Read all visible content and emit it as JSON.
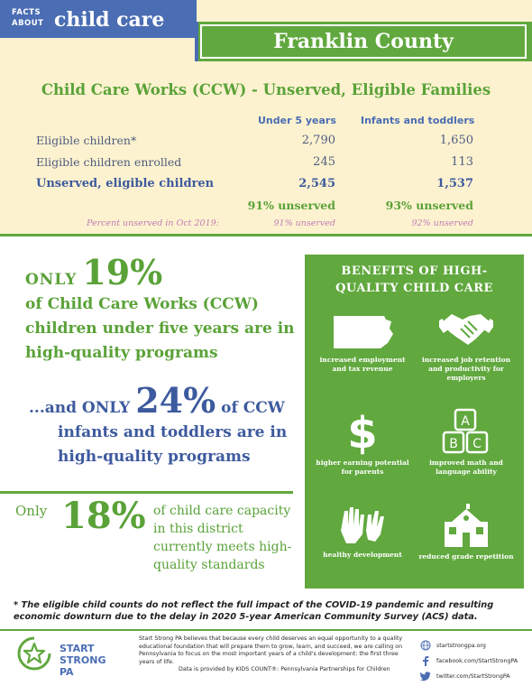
{
  "header": {
    "facts_line1": "FACTS",
    "facts_line2": "ABOUT",
    "facts_title": "child care",
    "county": "Franklin County"
  },
  "table": {
    "title": "Child Care Works (CCW) - Unserved, Eligible Families",
    "columns": [
      "Under 5 years",
      "Infants and toddlers"
    ],
    "rows": [
      {
        "label": "Eligible children*",
        "values": [
          "2,790",
          "1,650"
        ]
      },
      {
        "label": "Eligible children enrolled",
        "values": [
          "245",
          "113"
        ]
      },
      {
        "label": "Unserved, eligible children",
        "values": [
          "2,545",
          "1,537"
        ]
      }
    ],
    "unserved_pct": [
      "91% unserved",
      "93% unserved"
    ],
    "oct2019_label": "Percent unserved in Oct 2019:",
    "oct2019_values": [
      "91% unserved",
      "92% unserved"
    ]
  },
  "stats": {
    "s19_only": "ONLY",
    "s19_pct": "19%",
    "s19_text": "of Child Care Works (CCW) children under five years are in high-quality programs",
    "s24_pre": "...and ONLY",
    "s24_pct": "24%",
    "s24_post": "of CCW",
    "s24_line2": "infants and toddlers are in",
    "s24_line3": "high-quality programs",
    "s18_only": "Only",
    "s18_pct": "18%",
    "s18_text": "of child care capacity in this district currently meets high-quality standards"
  },
  "benefits": {
    "title_line1": "BENEFITS OF HIGH-",
    "title_line2": "QUALITY CHILD CARE",
    "items": [
      {
        "icon": "pennsylvania-map-icon",
        "label": "increased employment and tax revenue"
      },
      {
        "icon": "handshake-icon",
        "label": "increased job retention and productivity for employers"
      },
      {
        "icon": "dollar-sign-icon",
        "label": "higher earning potential for parents"
      },
      {
        "icon": "abc-blocks-icon",
        "label": "improved math and language ability"
      },
      {
        "icon": "hands-icon",
        "label": "healthy development"
      },
      {
        "icon": "schoolhouse-icon",
        "label": "reduced grade repetition"
      }
    ]
  },
  "footnote": "* The eligible child counts do not reflect the full impact of the COVID-19 pandemic and resulting economic downturn due to the delay in 2020 5-year American Community Survey (ACS) data.",
  "footer": {
    "logo_line1": "START",
    "logo_line2": "STRONG",
    "logo_line3": "PA",
    "mission": "Start Strong PA believes that because every child deserves an equal opportunity to a quality educational foundation that will prepare them to grow, learn, and succeed, we are calling on Pennsylvania to focus on the most important years of a child's development: the first three years of life.",
    "credit": "Data is provided by KIDS COUNT®: Pennsylvania Partnerships for Children",
    "social": [
      {
        "icon": "globe-icon",
        "text": "startstrongpa.org"
      },
      {
        "icon": "facebook-icon",
        "text": "facebook.com/StartStrongPA"
      },
      {
        "icon": "twitter-icon",
        "text": "twitter.com/StartStrongPA"
      }
    ]
  },
  "colors": {
    "green": "#61a83e",
    "blue": "#4a6db3",
    "cream": "#fdf2cf",
    "pink": "#c07cb8"
  }
}
